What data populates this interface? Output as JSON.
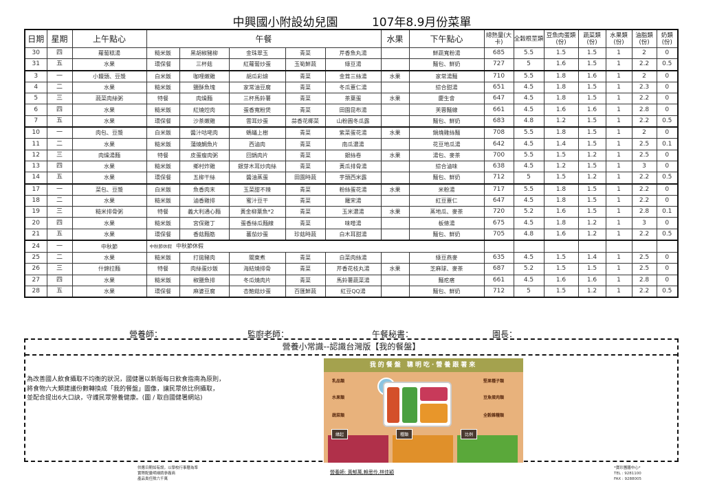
{
  "title": {
    "school": "中興國小附設幼兒園",
    "menu": "107年8.9月份菜單"
  },
  "headers": {
    "date": "日期",
    "weekday": "星期",
    "am_snack": "上午點心",
    "lunch": "午餐",
    "fruit": "水果",
    "pm_snack": "下午點心",
    "kcal": "總熱量(大卡)",
    "grains": "全穀根莖類",
    "protein": "豆魚肉蛋類(份)",
    "vegetables": "蔬菜類(份)",
    "fruits": "水果類(份)",
    "oils": "油脂類(份)",
    "milk": "奶類(份)"
  },
  "rows": [
    [
      "30",
      "四",
      "蘿蔔糕湯",
      "糙米飯",
      "黑胡椒豬柳",
      "金珠翠玉",
      "青菜",
      "芹香魚丸湯",
      "",
      "鮮蔬寬粉湯",
      "685",
      "5.5",
      "1.5",
      "1.5",
      "1",
      "2",
      "0"
    ],
    [
      "31",
      "五",
      "水果",
      "環保餐",
      "三杯菇",
      "紅蘿蔔炒蛋",
      "玉筍鮮蔬",
      "綠豆湯",
      "",
      "麵包、鮮奶",
      "727",
      "5",
      "1.6",
      "1.5",
      "1",
      "2.2",
      "0.5"
    ],
    [
      "3",
      "一",
      "小饅頭、豆漿",
      "白米飯",
      "咖哩嫩雞",
      "胡瓜彩燴",
      "青菜",
      "金茸三絲湯",
      "水果",
      "家常湯麵",
      "710",
      "5.5",
      "1.8",
      "1.6",
      "1",
      "2",
      "0"
    ],
    [
      "4",
      "二",
      "水果",
      "糙米飯",
      "鹽酥魚塊",
      "家常油豆腐",
      "青菜",
      "冬瓜薏仁湯",
      "",
      "綜合甜湯",
      "651",
      "4.5",
      "1.8",
      "1.5",
      "1",
      "2.3",
      "0"
    ],
    [
      "5",
      "三",
      "蔬菜肉絲粥",
      "特餐",
      "肉燥麵",
      "三杯馬鈴薯",
      "青菜",
      "茶葉蛋",
      "水果",
      "慶生會",
      "647",
      "4.5",
      "1.8",
      "1.5",
      "1",
      "2.2",
      "0"
    ],
    [
      "6",
      "四",
      "水果",
      "糙米飯",
      "紅燒焢肉",
      "蛋香寬粉煲",
      "青菜",
      "田園昆布湯",
      "",
      "芙蓉麵線",
      "661",
      "4.5",
      "1.6",
      "1.6",
      "1",
      "2.8",
      "0"
    ],
    [
      "7",
      "五",
      "水果",
      "環保餐",
      "沙茶嫩雞",
      "雲耳炒蛋",
      "蒜香花椰菜",
      "山粉圓冬瓜露",
      "",
      "麵包、鮮奶",
      "683",
      "4.8",
      "1.2",
      "1.5",
      "1",
      "2.2",
      "0.5"
    ],
    [
      "10",
      "一",
      "肉包、豆漿",
      "白米飯",
      "醬汁咕咾肉",
      "螞蟻上樹",
      "青菜",
      "紫菜蛋花湯",
      "水果",
      "鍋燒雞絲麵",
      "708",
      "5.5",
      "1.8",
      "1.5",
      "1",
      "2",
      "0"
    ],
    [
      "11",
      "二",
      "水果",
      "糙米飯",
      "蒲燒鯛魚片",
      "西滷肉",
      "青菜",
      "南瓜濃湯",
      "",
      "花豆地瓜湯",
      "642",
      "4.5",
      "1.4",
      "1.5",
      "1",
      "2.5",
      "0.1"
    ],
    [
      "12",
      "三",
      "肉燥湯麵",
      "特餐",
      "皮蛋瘦肉粥",
      "回鍋肉片",
      "青菜",
      "銀絲卷",
      "水果",
      "湯包、麥茶",
      "700",
      "5.5",
      "1.5",
      "1.2",
      "1",
      "2.5",
      "0"
    ],
    [
      "13",
      "四",
      "水果",
      "糙米飯",
      "鄉村炸雞",
      "銀芽木耳炒肉絲",
      "青菜",
      "黃瓜排骨湯",
      "",
      "綜合滷味",
      "638",
      "4.5",
      "1.2",
      "1.5",
      "1",
      "3",
      "0"
    ],
    [
      "14",
      "五",
      "水果",
      "環保餐",
      "五柳干絲",
      "醬油蒸蛋",
      "田園時蔬",
      "芋頭西米露",
      "",
      "麵包、鮮奶",
      "712",
      "5",
      "1.5",
      "1.2",
      "1",
      "2.2",
      "0.5"
    ],
    [
      "17",
      "一",
      "菜包、豆漿",
      "白米飯",
      "魚香肉末",
      "玉菜甜不辣",
      "青菜",
      "粉絲蛋花湯",
      "水果",
      "米粉湯",
      "717",
      "5.5",
      "1.8",
      "1.5",
      "1",
      "2.2",
      "0"
    ],
    [
      "18",
      "二",
      "水果",
      "糙米飯",
      "滷香雞排",
      "蜜汁豆干",
      "青菜",
      "羅宋湯",
      "",
      "紅豆薏仁",
      "647",
      "4.5",
      "1.8",
      "1.5",
      "1",
      "2.2",
      "0"
    ],
    [
      "19",
      "三",
      "糙米排骨粥",
      "特餐",
      "義大利通心麵",
      "黃金柳葉魚*2",
      "青菜",
      "玉米濃湯",
      "水果",
      "蒸地瓜、麥茶",
      "720",
      "5.2",
      "1.6",
      "1.5",
      "1",
      "2.8",
      "0.1"
    ],
    [
      "20",
      "四",
      "水果",
      "糙米飯",
      "宮保雞丁",
      "蛋香絲瓜麵線",
      "青菜",
      "味噌湯",
      "",
      "板條湯",
      "675",
      "4.5",
      "1.8",
      "1.2",
      "1",
      "3",
      "0"
    ],
    [
      "21",
      "五",
      "水果",
      "環保餐",
      "香菇麵筋",
      "蕃茄炒蛋",
      "珍菇時蔬",
      "白木耳甜湯",
      "",
      "麵包、鮮奶",
      "705",
      "4.8",
      "1.6",
      "1.2",
      "1",
      "2.2",
      "0.5"
    ],
    {
      "date": "24",
      "weekday": "一",
      "am_snack": "中秋節",
      "notes": [
        "中秋節休假",
        "中秋節休假"
      ]
    },
    [
      "25",
      "二",
      "水果",
      "糙米飯",
      "打拋豬肉",
      "關東煮",
      "青菜",
      "白菜肉絲湯",
      "",
      "綠豆燕麥",
      "635",
      "4.5",
      "1.5",
      "1.4",
      "1",
      "2.5",
      "0"
    ],
    [
      "26",
      "三",
      "什錦拉麵",
      "特餐",
      "肉絲蛋炒飯",
      "海結燒排骨",
      "青菜",
      "芹香花枝丸湯",
      "水果",
      "芝麻球、麥茶",
      "687",
      "5.2",
      "1.5",
      "1.5",
      "1",
      "2.5",
      "0"
    ],
    [
      "27",
      "四",
      "水果",
      "糙米飯",
      "椒鹽魚排",
      "冬瓜燒肉片",
      "青菜",
      "馬鈴薯蔬菜湯",
      "",
      "麵疙瘩",
      "661",
      "4.5",
      "1.6",
      "1.6",
      "1",
      "2.8",
      "0"
    ],
    [
      "28",
      "五",
      "水果",
      "環保餐",
      "麻婆豆腐",
      "杏鮑菇炒蛋",
      "百匯鮮蔬",
      "紅豆QQ湯",
      "",
      "麵包、鮮奶",
      "712",
      "5",
      "1.5",
      "1.2",
      "1",
      "2.2",
      "0.5"
    ]
  ],
  "signatures": {
    "dietitian": "營養師：",
    "kitchen_teacher": "監廚老師：",
    "lunch_secretary": "午餐秘書：",
    "principal": "園長："
  },
  "tips": {
    "heading": "營養小常識--認識台灣版【我的餐盤】",
    "lines": [
      "為改善國人飲食攝取不均衡的狀況，國健署以新版每日飲食指南為原則，",
      "將食物六大類建議份數轉換成「我的餐盤」圖像，讓民眾依比例攝取，",
      "並配合提出6大口訣，守護民眾營養健康。(圖 / 取自國健署網站)"
    ],
    "image": {
      "banner": "我的餐盤 聰明吃·營養跟著來",
      "labels_left": [
        "乳品類",
        "水果類",
        "蔬菜類"
      ],
      "labels_right": [
        "堅果種子類",
        "豆魚蛋肉類",
        "全穀雜糧類"
      ],
      "panels": [
        "緣起",
        "種類",
        "比例"
      ],
      "colors": {
        "banner": "#a4a24e",
        "background": "#e8b27c",
        "panel1": "#b0304a",
        "panel2": "#e0902a",
        "panel3": "#5aa83a"
      }
    }
  },
  "footer": {
    "left": [
      "供應日期如有誤，以學校行事曆為準",
      "實際配量明細請參廠商",
      "產品責任險六千萬"
    ],
    "center": "營養師: 黃郁萬,賴思伶,林佳穎",
    "right": [
      "*寶珍團膳中心*",
      "TEL : 9281100",
      "FAX : 9288005"
    ]
  }
}
